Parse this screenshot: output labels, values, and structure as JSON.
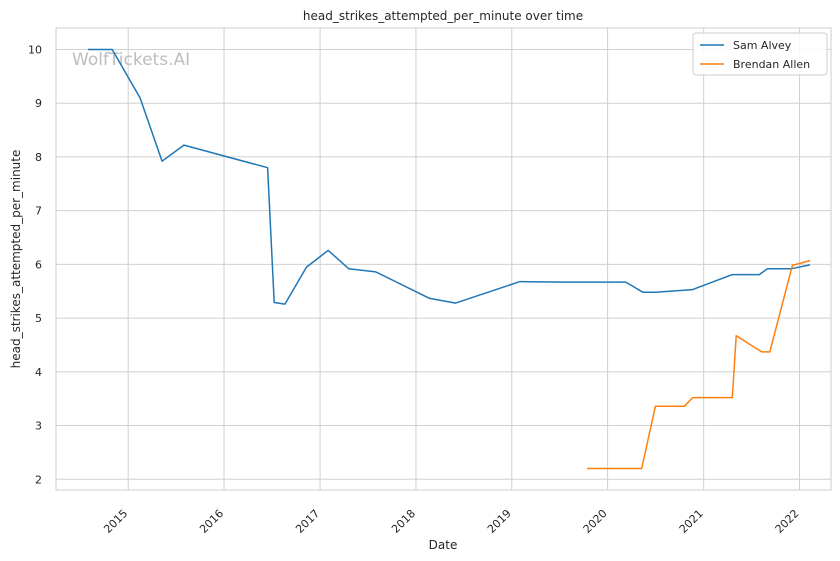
{
  "watermark": "WolfTickets.AI",
  "chart_data": {
    "type": "line",
    "title": "head_strikes_attempted_per_minute over time",
    "xlabel": "Date",
    "ylabel": "head_strikes_attempted_per_minute",
    "x_ticks": [
      "2015",
      "2016",
      "2017",
      "2018",
      "2019",
      "2020",
      "2021",
      "2022"
    ],
    "y_ticks": [
      2,
      3,
      4,
      5,
      6,
      7,
      8,
      9,
      10
    ],
    "xlim": [
      "2014-04-01",
      "2022-05-01"
    ],
    "ylim": [
      1.8,
      10.4
    ],
    "grid": true,
    "legend_position": "top-right",
    "series": [
      {
        "name": "Sam Alvey",
        "color": "#1f77b4",
        "points": [
          [
            "2014-08-01",
            10.0
          ],
          [
            "2014-11-01",
            10.0
          ],
          [
            "2015-02-15",
            9.1
          ],
          [
            "2015-05-10",
            7.92
          ],
          [
            "2015-08-01",
            8.22
          ],
          [
            "2016-06-15",
            7.8
          ],
          [
            "2016-07-10",
            5.29
          ],
          [
            "2016-08-20",
            5.26
          ],
          [
            "2016-11-10",
            5.95
          ],
          [
            "2017-02-01",
            6.26
          ],
          [
            "2017-04-20",
            5.92
          ],
          [
            "2017-08-01",
            5.86
          ],
          [
            "2018-02-20",
            5.37
          ],
          [
            "2018-06-01",
            5.28
          ],
          [
            "2019-02-01",
            5.68
          ],
          [
            "2019-07-15",
            5.67
          ],
          [
            "2020-03-10",
            5.67
          ],
          [
            "2020-05-15",
            5.48
          ],
          [
            "2020-07-01",
            5.48
          ],
          [
            "2020-11-20",
            5.53
          ],
          [
            "2021-04-20",
            5.81
          ],
          [
            "2021-08-01",
            5.81
          ],
          [
            "2021-09-01",
            5.92
          ],
          [
            "2021-12-01",
            5.92
          ],
          [
            "2022-02-10",
            5.99
          ]
        ]
      },
      {
        "name": "Brendan Allen",
        "color": "#ff7f0e",
        "points": [
          [
            "2019-10-15",
            2.2
          ],
          [
            "2020-05-10",
            2.2
          ],
          [
            "2020-07-01",
            3.36
          ],
          [
            "2020-10-20",
            3.36
          ],
          [
            "2020-11-20",
            3.52
          ],
          [
            "2021-04-20",
            3.52
          ],
          [
            "2021-05-05",
            4.67
          ],
          [
            "2021-08-10",
            4.37
          ],
          [
            "2021-09-10",
            4.37
          ],
          [
            "2021-12-05",
            5.98
          ],
          [
            "2022-02-10",
            6.07
          ]
        ]
      }
    ]
  }
}
